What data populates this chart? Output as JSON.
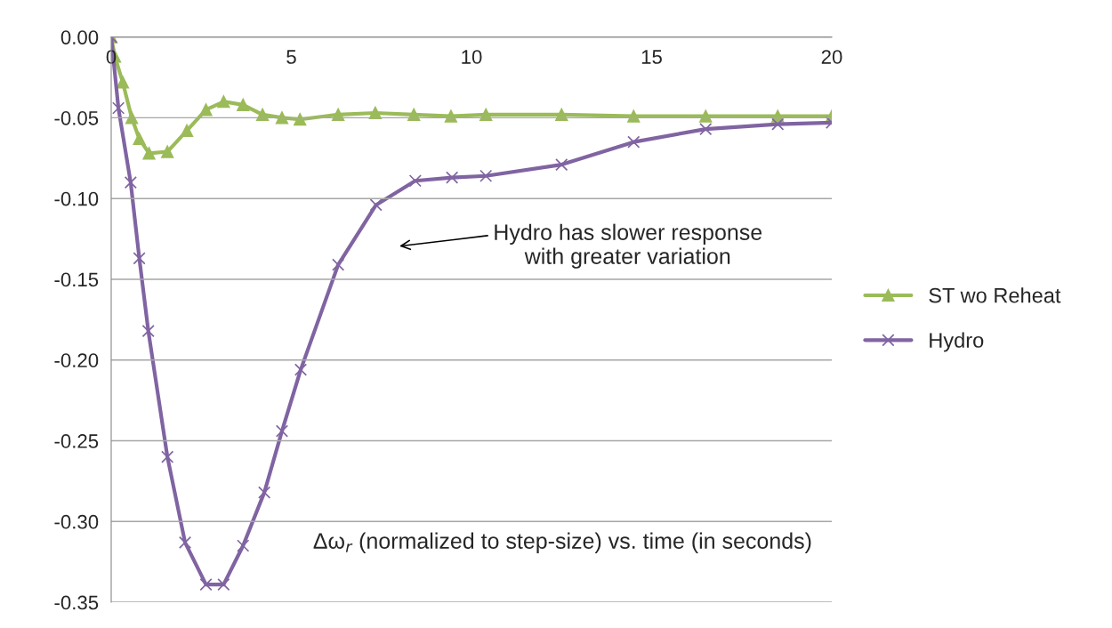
{
  "chart_data": {
    "type": "line",
    "series": [
      {
        "name": "ST wo Reheat",
        "color": "#9bbb59",
        "marker": "triangle",
        "x": [
          0,
          0.1,
          0.32,
          0.57,
          0.78,
          1.05,
          1.56,
          2.1,
          2.63,
          3.12,
          3.66,
          4.2,
          4.74,
          5.24,
          6.3,
          7.33,
          8.4,
          9.43,
          10.4,
          12.5,
          14.5,
          16.5,
          18.5,
          20
        ],
        "values": [
          0,
          -0.012,
          -0.028,
          -0.05,
          -0.063,
          -0.072,
          -0.071,
          -0.058,
          -0.045,
          -0.04,
          -0.042,
          -0.048,
          -0.05,
          -0.051,
          -0.048,
          -0.047,
          -0.048,
          -0.049,
          -0.048,
          -0.048,
          -0.049,
          -0.049,
          -0.049,
          -0.049
        ]
      },
      {
        "name": "Hydro",
        "color": "#8064a2",
        "marker": "cross",
        "x": [
          0,
          0.2,
          0.54,
          0.78,
          1.03,
          1.56,
          2.05,
          2.63,
          3.12,
          3.66,
          4.25,
          4.74,
          5.26,
          6.3,
          7.35,
          8.44,
          9.46,
          10.4,
          12.5,
          14.5,
          16.5,
          18.5,
          20
        ],
        "values": [
          0,
          -0.044,
          -0.09,
          -0.137,
          -0.182,
          -0.26,
          -0.313,
          -0.339,
          -0.339,
          -0.315,
          -0.282,
          -0.244,
          -0.206,
          -0.141,
          -0.104,
          -0.089,
          -0.087,
          -0.086,
          -0.079,
          -0.065,
          -0.057,
          -0.054,
          -0.053
        ]
      }
    ],
    "xlim": [
      0,
      20
    ],
    "xticks": [
      0,
      5,
      10,
      15,
      20
    ],
    "ylim": [
      -0.35,
      0
    ],
    "yticks": [
      {
        "value": -0.35,
        "label": "-0.35"
      },
      {
        "value": -0.3,
        "label": "-0.30"
      },
      {
        "value": -0.25,
        "label": "-0.25"
      },
      {
        "value": -0.2,
        "label": "-0.20"
      },
      {
        "value": -0.15,
        "label": "-0.15"
      },
      {
        "value": -0.1,
        "label": "-0.10"
      },
      {
        "value": -0.05,
        "label": "-0.05"
      },
      {
        "value": 0,
        "label": "0.00"
      }
    ],
    "grid": "y",
    "legend": "right",
    "annotations": [
      "Hydro has slower response\nwith greater variation",
      "Δω$_{r}$ (normalized to step-size) vs. time (in seconds)"
    ]
  }
}
